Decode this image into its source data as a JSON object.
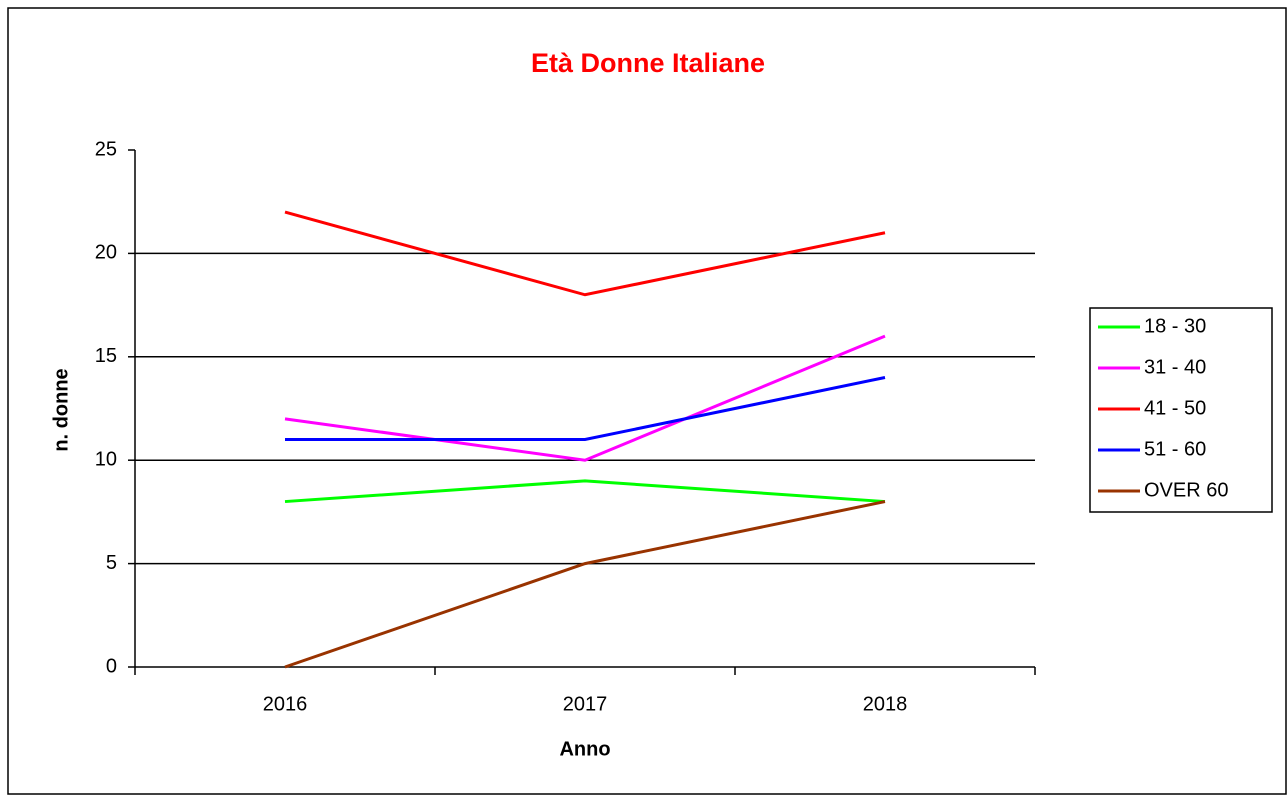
{
  "chart_data": {
    "type": "line",
    "title": "Età Donne Italiane",
    "x_label": "Anno",
    "y_label": "n. donne",
    "categories": [
      "2016",
      "2017",
      "2018"
    ],
    "series": [
      {
        "name": "18 - 30",
        "color": "#00ff00",
        "values": [
          8,
          9,
          8
        ]
      },
      {
        "name": "31 - 40",
        "color": "#ff00ff",
        "values": [
          12,
          10,
          16
        ]
      },
      {
        "name": "41 - 50",
        "color": "#ff0000",
        "values": [
          22,
          18,
          21
        ]
      },
      {
        "name": "51 - 60",
        "color": "#0000ff",
        "values": [
          11,
          11,
          14
        ]
      },
      {
        "name": "OVER 60",
        "color": "#993300",
        "values": [
          0,
          5,
          8
        ]
      }
    ],
    "ylim": [
      0,
      25
    ],
    "yticks": [
      0,
      5,
      10,
      15,
      20,
      25
    ],
    "grid": true,
    "legend": "right"
  }
}
